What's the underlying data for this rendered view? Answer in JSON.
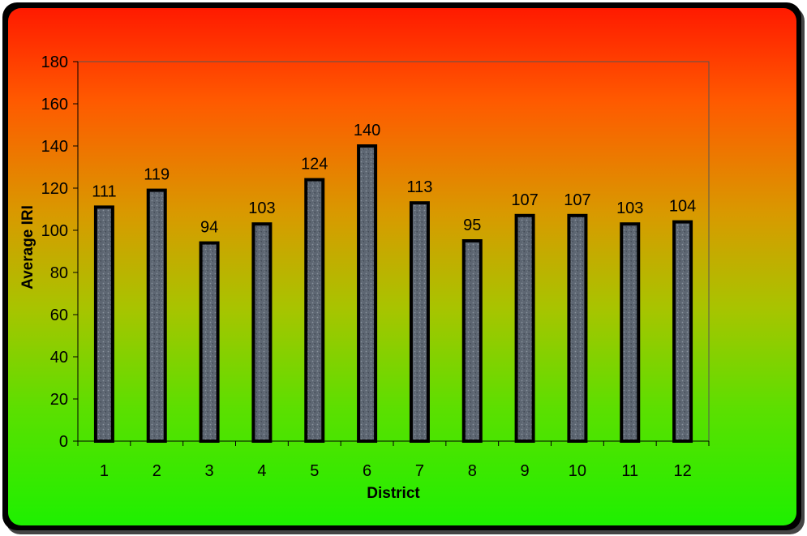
{
  "chart_data": {
    "type": "bar",
    "categories": [
      "1",
      "2",
      "3",
      "4",
      "5",
      "6",
      "7",
      "8",
      "9",
      "10",
      "11",
      "12"
    ],
    "values": [
      111,
      119,
      94,
      103,
      124,
      140,
      113,
      95,
      107,
      107,
      103,
      104
    ],
    "title": "",
    "xlabel": "District",
    "ylabel": "Average IRI",
    "ylim": [
      0,
      180
    ],
    "yticks": [
      0,
      20,
      40,
      60,
      80,
      100,
      120,
      140,
      160,
      180
    ],
    "grid": false,
    "legend": "none",
    "data_labels": true,
    "colors": {
      "bar_fill": "#5a6470",
      "bar_edge": "#000000",
      "plot_border": "#555555",
      "background_top": "#ff1a00",
      "background_bottom": "#1ef000",
      "frame": "#000000"
    }
  }
}
